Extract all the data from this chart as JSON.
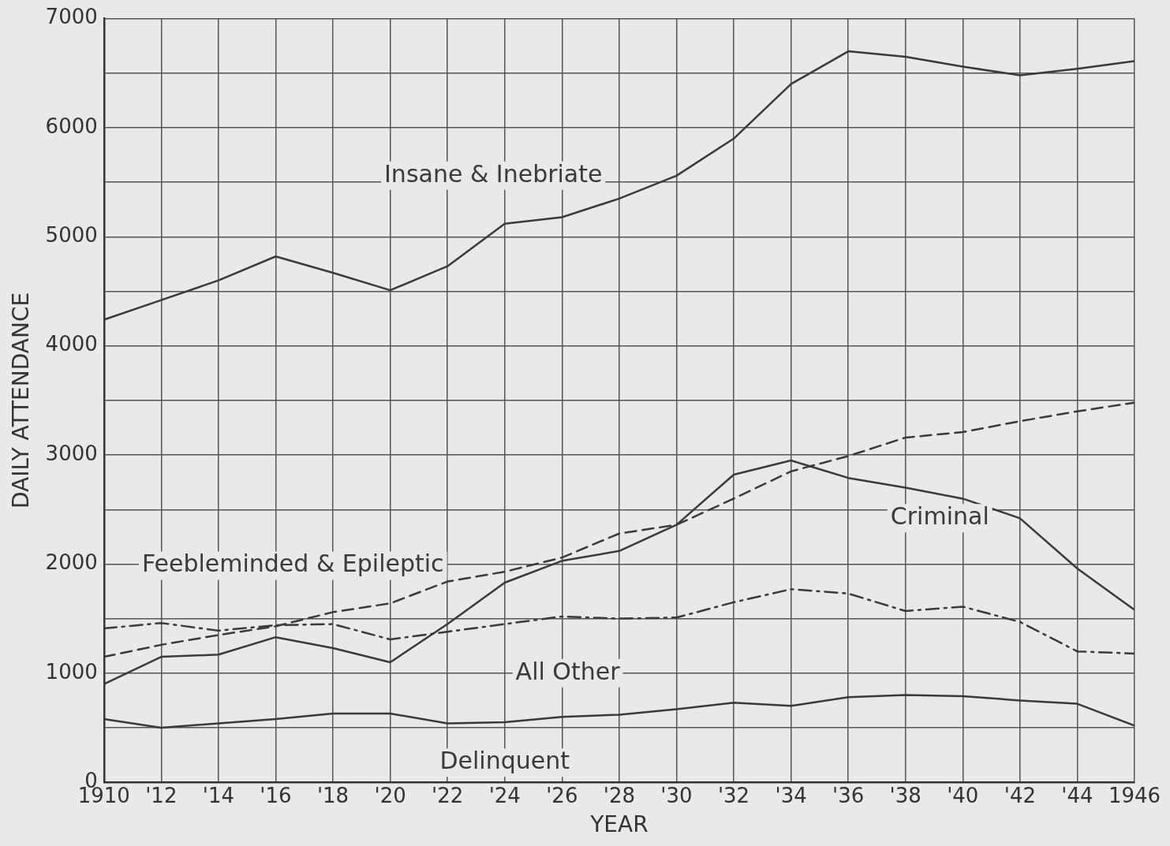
{
  "chart_data": {
    "type": "line",
    "xlabel": "YEAR",
    "ylabel": "DAILY ATTENDANCE",
    "x": [
      1910,
      1912,
      1914,
      1916,
      1918,
      1920,
      1922,
      1924,
      1926,
      1928,
      1930,
      1932,
      1934,
      1936,
      1938,
      1940,
      1942,
      1944,
      1946
    ],
    "series": [
      {
        "name": "Insane & Inebriate",
        "color": "#3a3a3a",
        "line_style": "solid",
        "values": [
          4240,
          4420,
          4600,
          4820,
          4670,
          4510,
          4730,
          5120,
          5180,
          5350,
          5560,
          5900,
          6400,
          6700,
          6650,
          6560,
          6480,
          6540,
          6610
        ]
      },
      {
        "name": "Feebleminded & Epileptic",
        "color": "#3a3a3a",
        "line_style": "dashed",
        "values": [
          1150,
          1260,
          1350,
          1430,
          1560,
          1640,
          1840,
          1930,
          2060,
          2280,
          2360,
          2600,
          2850,
          2990,
          3160,
          3210,
          3310,
          3400,
          3480
        ]
      },
      {
        "name": "Criminal",
        "color": "#3a3a3a",
        "line_style": "solid",
        "values": [
          900,
          1150,
          1170,
          1330,
          1230,
          1100,
          1450,
          1830,
          2030,
          2120,
          2360,
          2820,
          2950,
          2790,
          2700,
          2600,
          2420,
          1960,
          1580
        ]
      },
      {
        "name": "All Other",
        "color": "#3a3a3a",
        "line_style": "dashdot",
        "values": [
          1410,
          1460,
          1390,
          1440,
          1450,
          1310,
          1380,
          1450,
          1520,
          1500,
          1510,
          1650,
          1770,
          1730,
          1570,
          1610,
          1470,
          1200,
          1180
        ]
      },
      {
        "name": "Delinquent",
        "color": "#3a3a3a",
        "line_style": "solid",
        "values": [
          580,
          500,
          540,
          580,
          630,
          630,
          540,
          550,
          600,
          620,
          670,
          730,
          700,
          780,
          800,
          790,
          750,
          720,
          520
        ]
      }
    ],
    "xlim": [
      1910,
      1946
    ],
    "xticks": [
      {
        "value": 1910,
        "label": "1910"
      },
      {
        "value": 1912,
        "label": "'12"
      },
      {
        "value": 1914,
        "label": "'14"
      },
      {
        "value": 1916,
        "label": "'16"
      },
      {
        "value": 1918,
        "label": "'18"
      },
      {
        "value": 1920,
        "label": "'20"
      },
      {
        "value": 1922,
        "label": "'22"
      },
      {
        "value": 1924,
        "label": "'24"
      },
      {
        "value": 1926,
        "label": "'26"
      },
      {
        "value": 1928,
        "label": "'28"
      },
      {
        "value": 1930,
        "label": "'30"
      },
      {
        "value": 1932,
        "label": "'32"
      },
      {
        "value": 1934,
        "label": "'34"
      },
      {
        "value": 1936,
        "label": "'36"
      },
      {
        "value": 1938,
        "label": "'38"
      },
      {
        "value": 1940,
        "label": "'40"
      },
      {
        "value": 1942,
        "label": "'42"
      },
      {
        "value": 1944,
        "label": "'44"
      },
      {
        "value": 1946,
        "label": "1946"
      }
    ],
    "ylim": [
      0,
      7000
    ],
    "yticks": [
      0,
      {
        "value": 500,
        "label": null
      },
      1000,
      {
        "value": 1500,
        "label": null
      },
      2000,
      {
        "value": 2500,
        "label": null
      },
      3000,
      {
        "value": 3500,
        "label": null
      },
      4000,
      {
        "value": 4500,
        "label": null
      },
      5000,
      {
        "value": 5500,
        "label": null
      },
      6000,
      {
        "value": 6500,
        "label": null
      },
      7000
    ],
    "grid": true,
    "legend": false,
    "marker": "none"
  }
}
